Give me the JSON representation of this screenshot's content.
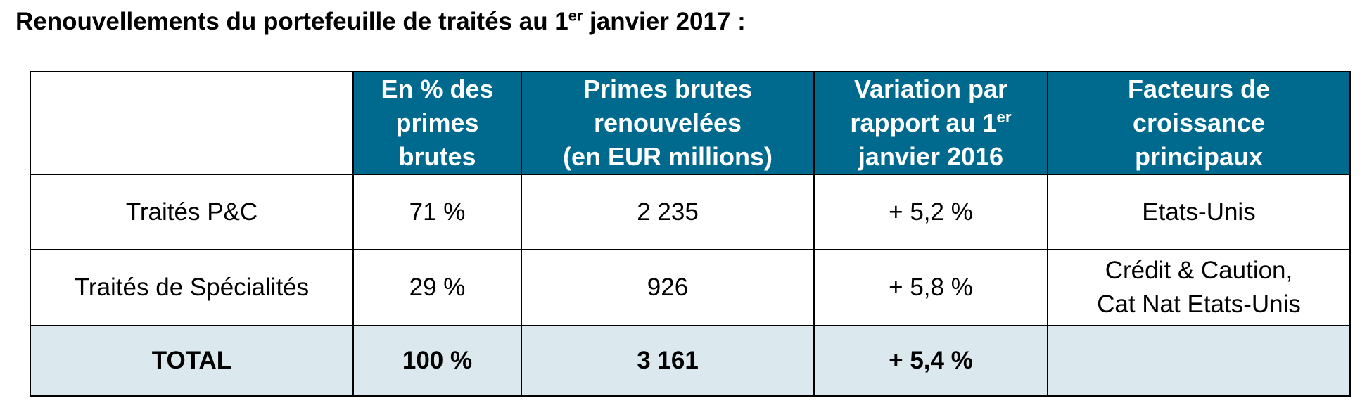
{
  "document": {
    "title_main": "Renouvellements du portefeuille de traités au 1",
    "title_sup": "er",
    "title_rest": " janvier 2017 :"
  },
  "colors": {
    "header_background": "#006a8e",
    "header_text": "#ffffff",
    "total_row_background": "#dbe8ee"
  },
  "table": {
    "headers": [
      {
        "lines": [
          "En % des",
          "primes",
          "brutes"
        ]
      },
      {
        "lines": [
          "Primes brutes",
          "renouvelées",
          "(en EUR millions)"
        ]
      },
      {
        "line1_main": "Variation par",
        "line2_main": "rapport au 1",
        "line2_sup": "er",
        "line3": "janvier 2016"
      },
      {
        "lines": [
          "Facteurs de",
          "croissance",
          "principaux"
        ]
      }
    ],
    "rows": [
      {
        "label": "Traités P&C",
        "pct": "71 %",
        "premiums": "2 235",
        "variation": "+ 5,2 %",
        "drivers": [
          "Etats-Unis"
        ]
      },
      {
        "label": "Traités de Spécialités",
        "pct": "29 %",
        "premiums": "926",
        "variation": "+ 5,8 %",
        "drivers": [
          "Crédit & Caution,",
          "Cat Nat Etats-Unis"
        ]
      }
    ],
    "total": {
      "label": "TOTAL",
      "pct": "100 %",
      "premiums": "3 161",
      "variation": "+ 5,4 %",
      "drivers": ""
    }
  }
}
